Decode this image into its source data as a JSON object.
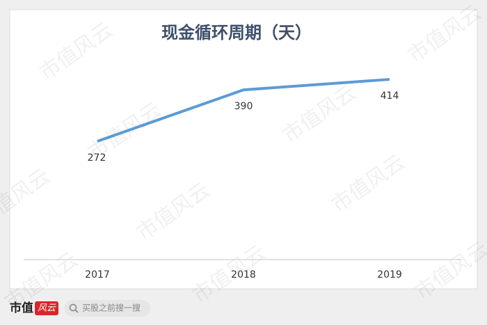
{
  "chart_data": {
    "type": "line",
    "title": "现金循环周期（天）",
    "categories": [
      "2017",
      "2018",
      "2019"
    ],
    "series": [
      {
        "name": "现金循环周期",
        "color": "#5b9bd5",
        "values": [
          272,
          390,
          414
        ]
      }
    ],
    "ylim": [
      0,
      450
    ],
    "grid": false
  },
  "watermark": "市值风云",
  "footer": {
    "logo_text": "市值",
    "logo_mark": "风云",
    "search": "买股之前搜一搜"
  }
}
